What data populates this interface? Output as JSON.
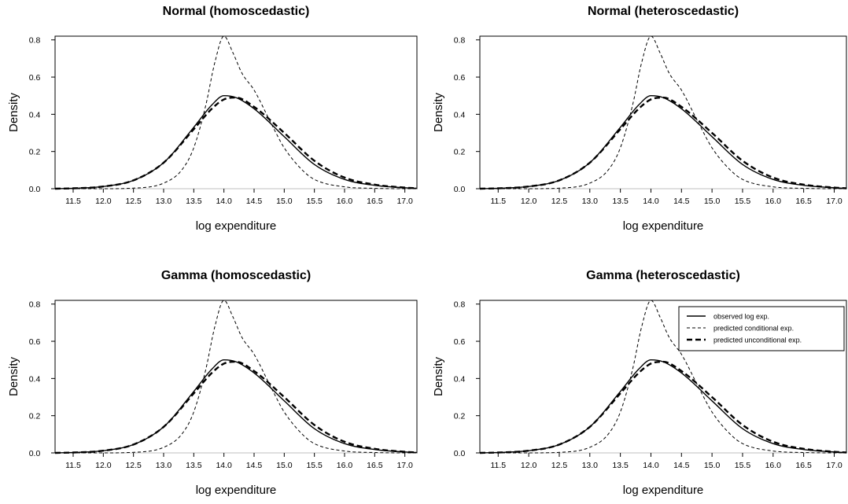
{
  "chart_data": [
    {
      "type": "line",
      "title": "Normal (homoscedastic)",
      "xlabel": "log expenditure",
      "ylabel": "Density",
      "xlim": [
        11.2,
        17.2
      ],
      "ylim": [
        0,
        0.82
      ],
      "xticks": [
        "11.5",
        "12.0",
        "12.5",
        "13.0",
        "13.5",
        "14.0",
        "14.5",
        "15.0",
        "15.5",
        "16.0",
        "16.5",
        "17.0"
      ],
      "yticks": [
        "0.0",
        "0.2",
        "0.4",
        "0.6",
        "0.8"
      ],
      "legend": false,
      "series": [
        {
          "name": "observed log exp.",
          "style": "solid",
          "x": [
            11.2,
            11.5,
            12.0,
            12.5,
            13.0,
            13.5,
            13.8,
            14.0,
            14.2,
            14.5,
            15.0,
            15.5,
            16.0,
            16.5,
            17.0,
            17.2
          ],
          "y": [
            0.0,
            0.002,
            0.012,
            0.045,
            0.14,
            0.33,
            0.45,
            0.5,
            0.49,
            0.43,
            0.28,
            0.13,
            0.05,
            0.018,
            0.005,
            0.002
          ]
        },
        {
          "name": "predicted conditional exp.",
          "style": "dashed-thin",
          "x": [
            11.2,
            12.0,
            12.5,
            13.0,
            13.3,
            13.5,
            13.7,
            13.85,
            14.0,
            14.15,
            14.3,
            14.5,
            14.8,
            15.0,
            15.3,
            15.5,
            16.0,
            16.5,
            17.0,
            17.2
          ],
          "y": [
            0.0,
            0.0,
            0.003,
            0.03,
            0.1,
            0.22,
            0.45,
            0.68,
            0.82,
            0.73,
            0.62,
            0.53,
            0.34,
            0.22,
            0.1,
            0.05,
            0.01,
            0.002,
            0.0,
            0.0
          ]
        },
        {
          "name": "predicted unconditional exp.",
          "style": "dashed-thick",
          "x": [
            11.2,
            11.5,
            12.0,
            12.5,
            13.0,
            13.5,
            13.8,
            14.0,
            14.2,
            14.5,
            15.0,
            15.5,
            16.0,
            16.5,
            17.0,
            17.2
          ],
          "y": [
            0.0,
            0.002,
            0.012,
            0.045,
            0.14,
            0.32,
            0.43,
            0.48,
            0.49,
            0.44,
            0.3,
            0.15,
            0.06,
            0.022,
            0.006,
            0.002
          ]
        }
      ]
    },
    {
      "type": "line",
      "title": "Normal (heteroscedastic)",
      "xlabel": "log expenditure",
      "ylabel": "Density",
      "xlim": [
        11.2,
        17.2
      ],
      "ylim": [
        0,
        0.82
      ],
      "xticks": [
        "11.5",
        "12.0",
        "12.5",
        "13.0",
        "13.5",
        "14.0",
        "14.5",
        "15.0",
        "15.5",
        "16.0",
        "16.5",
        "17.0"
      ],
      "yticks": [
        "0.0",
        "0.2",
        "0.4",
        "0.6",
        "0.8"
      ],
      "legend": false,
      "series": [
        {
          "name": "observed log exp.",
          "style": "solid",
          "x": [
            11.2,
            11.5,
            12.0,
            12.5,
            13.0,
            13.5,
            13.8,
            14.0,
            14.2,
            14.5,
            15.0,
            15.5,
            16.0,
            16.5,
            17.0,
            17.2
          ],
          "y": [
            0.0,
            0.002,
            0.012,
            0.045,
            0.14,
            0.33,
            0.45,
            0.5,
            0.49,
            0.43,
            0.28,
            0.13,
            0.05,
            0.018,
            0.005,
            0.002
          ]
        },
        {
          "name": "predicted conditional exp.",
          "style": "dashed-thin",
          "x": [
            11.2,
            12.0,
            12.5,
            13.0,
            13.3,
            13.5,
            13.7,
            13.85,
            14.0,
            14.15,
            14.3,
            14.5,
            14.8,
            15.0,
            15.3,
            15.5,
            16.0,
            16.5,
            17.0,
            17.2
          ],
          "y": [
            0.0,
            0.0,
            0.003,
            0.03,
            0.1,
            0.22,
            0.45,
            0.68,
            0.82,
            0.73,
            0.62,
            0.53,
            0.34,
            0.22,
            0.1,
            0.05,
            0.01,
            0.002,
            0.0,
            0.0
          ]
        },
        {
          "name": "predicted unconditional exp.",
          "style": "dashed-thick",
          "x": [
            11.2,
            11.5,
            12.0,
            12.5,
            13.0,
            13.5,
            13.8,
            14.0,
            14.2,
            14.5,
            15.0,
            15.5,
            16.0,
            16.5,
            17.0,
            17.2
          ],
          "y": [
            0.0,
            0.002,
            0.012,
            0.045,
            0.14,
            0.32,
            0.43,
            0.48,
            0.49,
            0.44,
            0.3,
            0.15,
            0.06,
            0.022,
            0.006,
            0.002
          ]
        }
      ]
    },
    {
      "type": "line",
      "title": "Gamma (homoscedastic)",
      "xlabel": "log expenditure",
      "ylabel": "Density",
      "xlim": [
        11.2,
        17.2
      ],
      "ylim": [
        0,
        0.82
      ],
      "xticks": [
        "11.5",
        "12.0",
        "12.5",
        "13.0",
        "13.5",
        "14.0",
        "14.5",
        "15.0",
        "15.5",
        "16.0",
        "16.5",
        "17.0"
      ],
      "yticks": [
        "0.0",
        "0.2",
        "0.4",
        "0.6",
        "0.8"
      ],
      "legend": false,
      "series": [
        {
          "name": "observed log exp.",
          "style": "solid",
          "x": [
            11.2,
            11.5,
            12.0,
            12.5,
            13.0,
            13.5,
            13.8,
            14.0,
            14.2,
            14.5,
            15.0,
            15.5,
            16.0,
            16.5,
            17.0,
            17.2
          ],
          "y": [
            0.0,
            0.002,
            0.012,
            0.045,
            0.14,
            0.33,
            0.45,
            0.5,
            0.49,
            0.43,
            0.28,
            0.13,
            0.05,
            0.018,
            0.005,
            0.002
          ]
        },
        {
          "name": "predicted conditional exp.",
          "style": "dashed-thin",
          "x": [
            11.2,
            12.0,
            12.5,
            13.0,
            13.3,
            13.5,
            13.7,
            13.85,
            14.0,
            14.15,
            14.3,
            14.5,
            14.8,
            15.0,
            15.3,
            15.5,
            16.0,
            16.5,
            17.0,
            17.2
          ],
          "y": [
            0.0,
            0.0,
            0.003,
            0.03,
            0.1,
            0.22,
            0.45,
            0.68,
            0.82,
            0.73,
            0.62,
            0.53,
            0.34,
            0.22,
            0.1,
            0.05,
            0.01,
            0.002,
            0.0,
            0.0
          ]
        },
        {
          "name": "predicted unconditional exp.",
          "style": "dashed-thick",
          "x": [
            11.2,
            11.5,
            12.0,
            12.5,
            13.0,
            13.5,
            13.8,
            14.0,
            14.2,
            14.5,
            15.0,
            15.5,
            16.0,
            16.5,
            17.0,
            17.2
          ],
          "y": [
            0.0,
            0.002,
            0.012,
            0.045,
            0.14,
            0.32,
            0.43,
            0.48,
            0.49,
            0.44,
            0.3,
            0.15,
            0.06,
            0.022,
            0.006,
            0.002
          ]
        }
      ]
    },
    {
      "type": "line",
      "title": "Gamma (heteroscedastic)",
      "xlabel": "log expenditure",
      "ylabel": "Density",
      "xlim": [
        11.2,
        17.2
      ],
      "ylim": [
        0,
        0.82
      ],
      "xticks": [
        "11.5",
        "12.0",
        "12.5",
        "13.0",
        "13.5",
        "14.0",
        "14.5",
        "15.0",
        "15.5",
        "16.0",
        "16.5",
        "17.0"
      ],
      "yticks": [
        "0.0",
        "0.2",
        "0.4",
        "0.6",
        "0.8"
      ],
      "legend": true,
      "legend_position": "top-right",
      "series": [
        {
          "name": "observed log exp.",
          "style": "solid",
          "x": [
            11.2,
            11.5,
            12.0,
            12.5,
            13.0,
            13.5,
            13.8,
            14.0,
            14.2,
            14.5,
            15.0,
            15.5,
            16.0,
            16.5,
            17.0,
            17.2
          ],
          "y": [
            0.0,
            0.002,
            0.012,
            0.045,
            0.14,
            0.33,
            0.45,
            0.5,
            0.49,
            0.43,
            0.28,
            0.13,
            0.05,
            0.018,
            0.005,
            0.002
          ]
        },
        {
          "name": "predicted conditional exp.",
          "style": "dashed-thin",
          "x": [
            11.2,
            12.0,
            12.5,
            13.0,
            13.3,
            13.5,
            13.7,
            13.85,
            14.0,
            14.15,
            14.3,
            14.5,
            14.8,
            15.0,
            15.3,
            15.5,
            16.0,
            16.5,
            17.0,
            17.2
          ],
          "y": [
            0.0,
            0.0,
            0.003,
            0.03,
            0.1,
            0.22,
            0.45,
            0.68,
            0.82,
            0.73,
            0.62,
            0.53,
            0.34,
            0.22,
            0.1,
            0.05,
            0.01,
            0.002,
            0.0,
            0.0
          ]
        },
        {
          "name": "predicted unconditional exp.",
          "style": "dashed-thick",
          "x": [
            11.2,
            11.5,
            12.0,
            12.5,
            13.0,
            13.5,
            13.8,
            14.0,
            14.2,
            14.5,
            15.0,
            15.5,
            16.0,
            16.5,
            17.0,
            17.2
          ],
          "y": [
            0.0,
            0.002,
            0.012,
            0.045,
            0.14,
            0.32,
            0.43,
            0.48,
            0.49,
            0.44,
            0.3,
            0.15,
            0.06,
            0.022,
            0.006,
            0.002
          ]
        }
      ]
    }
  ]
}
